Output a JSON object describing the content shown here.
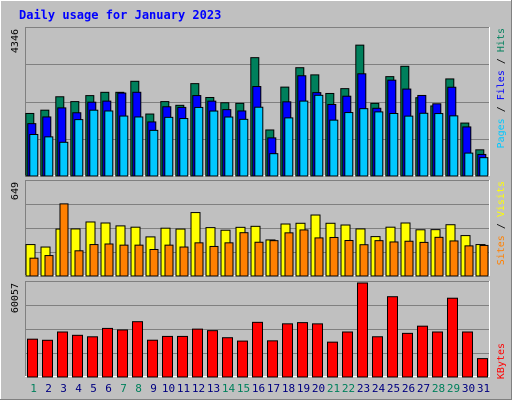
{
  "chart_data": [
    {
      "type": "bar",
      "title": "Daily usage for January 2023",
      "categories": [
        "1",
        "2",
        "3",
        "4",
        "5",
        "6",
        "7",
        "8",
        "9",
        "10",
        "11",
        "12",
        "13",
        "14",
        "15",
        "16",
        "17",
        "18",
        "19",
        "20",
        "21",
        "22",
        "23",
        "24",
        "25",
        "26",
        "27",
        "28",
        "29",
        "30",
        "31"
      ],
      "y_axis_max_label": "4346",
      "ylim": [
        0,
        4346
      ],
      "grid": true,
      "legend_placement": "right",
      "series": [
        {
          "name": "Hits",
          "values": [
            1849,
            1946,
            2343,
            2200,
            2377,
            2474,
            2474,
            2800,
            1832,
            2200,
            2090,
            2731,
            2321,
            2166,
            2149,
            3499,
            1361,
            2628,
            3202,
            2990,
            2440,
            2583,
            3869,
            2148,
            2938,
            3244,
            2315,
            2071,
            2870,
            1565,
            774
          ]
        },
        {
          "name": "Files",
          "values": [
            1548,
            1746,
            2014,
            1870,
            2182,
            2214,
            2452,
            2475,
            1599,
            2047,
            2028,
            2378,
            2213,
            1962,
            1923,
            2645,
            1127,
            2193,
            2964,
            2465,
            2114,
            2359,
            3022,
            2002,
            2833,
            2570,
            2381,
            2135,
            2624,
            1451,
            637
          ]
        },
        {
          "name": "Pages",
          "values": [
            1227,
            1157,
            996,
            1667,
            1945,
            1922,
            1772,
            1745,
            1349,
            1734,
            1699,
            2027,
            1920,
            1743,
            1675,
            2033,
            660,
            1718,
            2214,
            2385,
            1651,
            1876,
            1991,
            1895,
            1848,
            1770,
            1854,
            1846,
            1778,
            677,
            542
          ]
        }
      ],
      "colors": {
        "hits": "#00805c",
        "files": "#0000ff",
        "pages": "#00c8ff"
      },
      "legend_text": {
        "pages": "Pages",
        "files": "Files",
        "hits": "Hits",
        "sep": " / "
      }
    },
    {
      "type": "bar",
      "categories": [
        "1",
        "2",
        "3",
        "4",
        "5",
        "6",
        "7",
        "8",
        "9",
        "10",
        "11",
        "12",
        "13",
        "14",
        "15",
        "16",
        "17",
        "18",
        "19",
        "20",
        "21",
        "22",
        "23",
        "24",
        "25",
        "26",
        "27",
        "28",
        "29",
        "30",
        "31"
      ],
      "y_axis_max_label": "649",
      "ylim": [
        0,
        649
      ],
      "grid": true,
      "legend_placement": "right",
      "series": [
        {
          "name": "Visits",
          "values": [
            217,
            200,
            324,
            325,
            373,
            366,
            346,
            337,
            270,
            330,
            324,
            438,
            334,
            316,
            336,
            343,
            249,
            359,
            364,
            421,
            364,
            352,
            325,
            272,
            337,
            366,
            319,
            320,
            354,
            279,
            217
          ]
        },
        {
          "name": "Sites",
          "values": [
            123,
            141,
            498,
            174,
            217,
            221,
            213,
            213,
            183,
            213,
            200,
            229,
            204,
            229,
            299,
            233,
            244,
            298,
            318,
            263,
            266,
            245,
            216,
            244,
            235,
            240,
            232,
            267,
            242,
            208,
            211
          ]
        }
      ],
      "colors": {
        "visits": "#ffff00",
        "sites": "#ff8000"
      },
      "legend_text": {
        "sites": "Sites",
        "visits": "Visits",
        "sep": " / "
      }
    },
    {
      "type": "bar",
      "categories": [
        "1",
        "2",
        "3",
        "4",
        "5",
        "6",
        "7",
        "8",
        "9",
        "10",
        "11",
        "12",
        "13",
        "14",
        "15",
        "16",
        "17",
        "18",
        "19",
        "20",
        "21",
        "22",
        "23",
        "24",
        "25",
        "26",
        "27",
        "28",
        "29",
        "30",
        "31"
      ],
      "y_axis_max_label": "60057",
      "ylim": [
        0,
        60057
      ],
      "grid": true,
      "legend_placement": "right",
      "series": [
        {
          "name": "KBytes",
          "values": [
            24163,
            23457,
            28747,
            26634,
            25692,
            31040,
            30059,
            35348,
            23504,
            25929,
            25929,
            30588,
            29618,
            25105,
            22946,
            34920,
            23105,
            33981,
            34746,
            33957,
            22269,
            28747,
            60057,
            25717,
            51305,
            27880,
            32471,
            28747,
            50335,
            28747,
            11750
          ]
        }
      ],
      "colors": {
        "kbytes": "#ff0000"
      },
      "legend_text": {
        "kbytes": "KBytes"
      }
    }
  ],
  "weekend_days": [
    "1",
    "7",
    "8",
    "14",
    "15",
    "21",
    "22",
    "28",
    "29"
  ],
  "colors": {
    "title": "#0000ff",
    "weekday_label": "#000080",
    "weekend_label": "#00805c",
    "panel_bg": "#c0c0c0",
    "plot_bg": "#c0c0c0"
  }
}
